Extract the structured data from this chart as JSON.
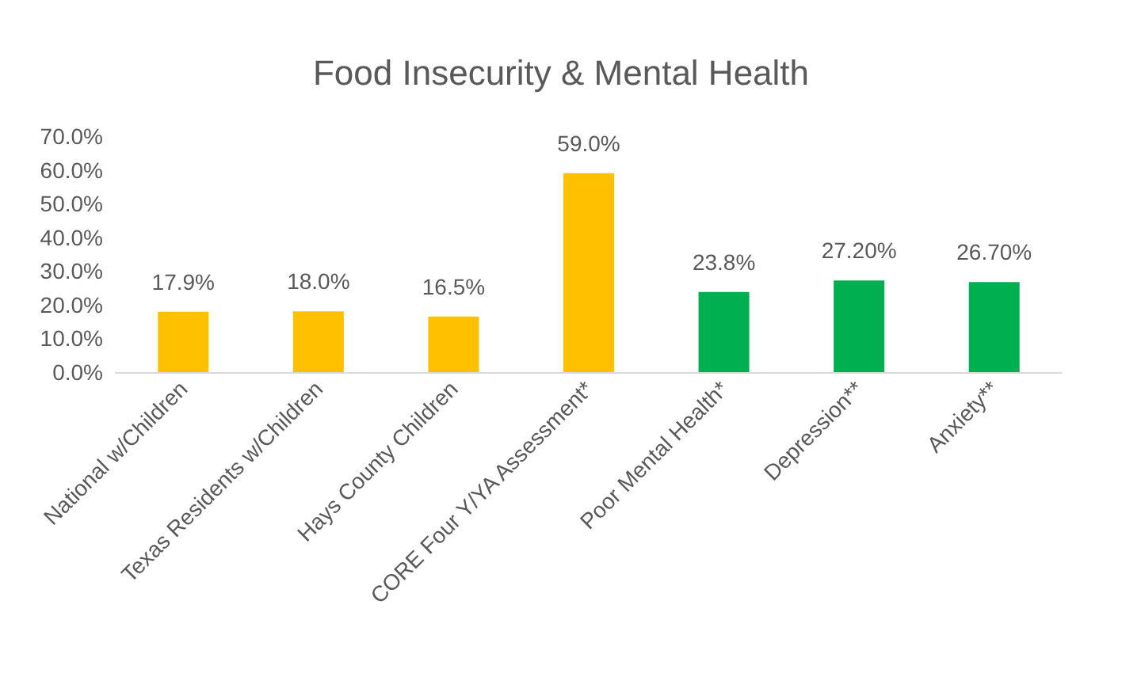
{
  "chart_data": {
    "type": "bar",
    "title": "Food Insecurity & Mental Health",
    "categories": [
      "National w/Children",
      "Texas Residents w/Children",
      "Hays County Children",
      "CORE Four Y/YA Assessment*",
      "Poor Mental Health*",
      "Depression**",
      "Anxiety**"
    ],
    "values": [
      17.9,
      18.0,
      16.5,
      59.0,
      23.8,
      27.2,
      26.7
    ],
    "colors": [
      "#ffc000",
      "#ffc000",
      "#ffc000",
      "#ffc000",
      "#00b050",
      "#00b050",
      "#00b050"
    ],
    "value_labels": [
      "17.9%",
      "18.0%",
      "16.5%",
      "59.0%",
      "23.8%",
      "27.20%",
      "26.70%"
    ],
    "ylim": [
      0,
      70
    ],
    "yticks": [
      {
        "value": 0,
        "label": "0.0%"
      },
      {
        "value": 10,
        "label": "10.0%"
      },
      {
        "value": 20,
        "label": "20.0%"
      },
      {
        "value": 30,
        "label": "30.0%"
      },
      {
        "value": 40,
        "label": "40.0%"
      },
      {
        "value": 50,
        "label": "50.0%"
      },
      {
        "value": 60,
        "label": "60.0%"
      },
      {
        "value": 70,
        "label": "70.0%"
      }
    ],
    "grid": false
  }
}
